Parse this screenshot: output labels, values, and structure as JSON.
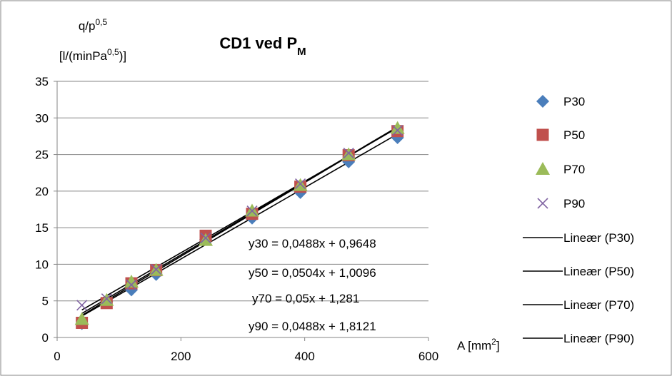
{
  "chart_data": {
    "type": "scatter",
    "title": "CD1 ved P",
    "title_subscript": "M",
    "ylabel_line1_base": "q/p",
    "ylabel_line1_sup": "0,5",
    "ylabel_line2_base": "[l/(minPa",
    "ylabel_line2_sup": "0,5",
    "ylabel_line2_end": ")]",
    "xlabel_base": "A [mm",
    "xlabel_sup": "2",
    "xlabel_end": "]",
    "xlim": [
      0,
      600
    ],
    "ylim": [
      0,
      35
    ],
    "xticks": [
      "0",
      "200",
      "400",
      "600"
    ],
    "yticks": [
      "0",
      "5",
      "10",
      "15",
      "20",
      "25",
      "30",
      "35"
    ],
    "grid": "horizontal",
    "legend_position": "right",
    "series": [
      {
        "name": "P30",
        "marker": "diamond",
        "color": "#4a7ebb",
        "x": [
          40,
          80,
          120,
          160,
          240,
          315,
          393,
          471,
          550
        ],
        "y": [
          1.9,
          4.9,
          6.5,
          8.6,
          13.4,
          16.3,
          19.8,
          24.0,
          27.3
        ]
      },
      {
        "name": "P50",
        "marker": "square",
        "color": "#c0504d",
        "x": [
          40,
          80,
          120,
          160,
          240,
          315,
          393,
          471,
          550
        ],
        "y": [
          2.0,
          4.7,
          7.4,
          9.2,
          13.9,
          16.9,
          20.6,
          24.9,
          28.2
        ]
      },
      {
        "name": "P70",
        "marker": "triangle",
        "color": "#9bbb59",
        "x": [
          40,
          80,
          120,
          160,
          240,
          315,
          393,
          471,
          550
        ],
        "y": [
          2.5,
          5.1,
          7.6,
          9.2,
          13.3,
          17.3,
          20.8,
          25.0,
          28.6
        ]
      },
      {
        "name": "P90",
        "marker": "x",
        "color": "#8064a2",
        "x": [
          40,
          80,
          120,
          160,
          240,
          315,
          393,
          471,
          550
        ],
        "y": [
          4.4,
          5.3,
          7.2,
          9.3,
          13.6,
          17.3,
          21.0,
          25.2,
          28.3
        ]
      }
    ],
    "trendlines": [
      {
        "name": "Lineær (P30)",
        "slope": 0.0488,
        "intercept": 0.9648,
        "x_range": [
          40,
          550
        ],
        "equation": "y30 = 0,0488x + 0,9648"
      },
      {
        "name": "Lineær (P50)",
        "slope": 0.0504,
        "intercept": 1.0096,
        "x_range": [
          40,
          550
        ],
        "equation": "y50 = 0,0504x + 1,0096"
      },
      {
        "name": "Lineær (P70)",
        "slope": 0.05,
        "intercept": 1.281,
        "x_range": [
          40,
          550
        ],
        "equation": "y70 = 0,05x + 1,281"
      },
      {
        "name": "Lineær (P90)",
        "slope": 0.0488,
        "intercept": 1.8121,
        "x_range": [
          40,
          550
        ],
        "equation": "y90 = 0,0488x + 1,8121"
      }
    ]
  }
}
